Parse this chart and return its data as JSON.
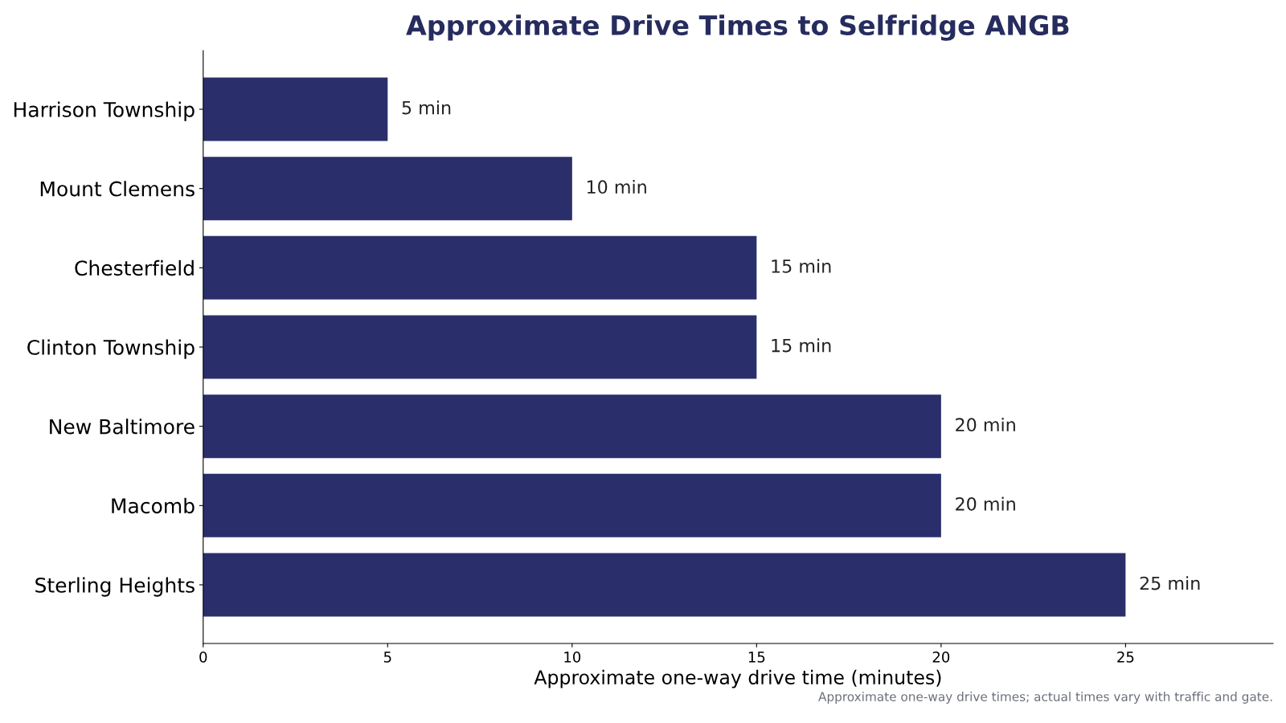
{
  "chart_data": {
    "type": "bar",
    "orientation": "horizontal",
    "title": "Approximate Drive Times to Selfridge ANGB",
    "xlabel": "Approximate one-way drive time (minutes)",
    "categories": [
      "Harrison Township",
      "Mount Clemens",
      "Chesterfield",
      "Clinton Township",
      "New Baltimore",
      "Macomb",
      "Sterling Heights"
    ],
    "values": [
      5,
      10,
      15,
      15,
      20,
      20,
      25
    ],
    "value_labels": [
      "5 min",
      "10 min",
      "15 min",
      "15 min",
      "20 min",
      "20 min",
      "25 min"
    ],
    "color": "#2a2f6b",
    "xlim": [
      0,
      29
    ],
    "xticks": [
      0,
      5,
      10,
      15,
      20,
      25
    ],
    "grid": false,
    "annotations": [
      "Approximate one-way drive times; actual times vary with traffic and gate."
    ]
  }
}
